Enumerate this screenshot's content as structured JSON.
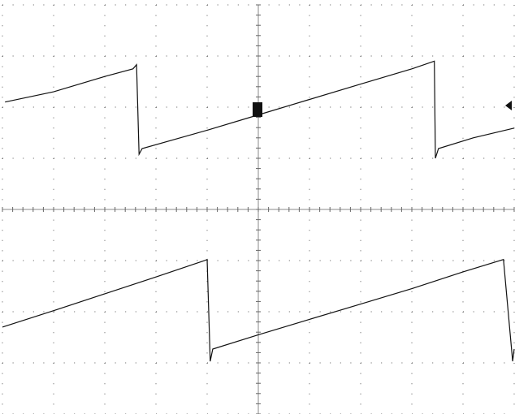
{
  "chart_data": {
    "type": "line",
    "xlim": [
      0,
      10
    ],
    "ylim": [
      -4,
      4
    ],
    "series": [
      {
        "color": "#111111",
        "x": [
          0.05,
          1.0,
          2.0,
          2.55,
          2.62,
          2.67,
          2.73,
          4.0,
          5.0,
          6.0,
          7.0,
          8.0,
          8.44,
          8.46,
          8.52,
          9.2,
          10.0
        ],
        "values": [
          2.1,
          2.3,
          2.6,
          2.75,
          2.83,
          1.08,
          1.19,
          1.55,
          1.85,
          2.15,
          2.45,
          2.75,
          2.9,
          1.0,
          1.19,
          1.4,
          1.59
        ]
      },
      {
        "color": "#111111",
        "x": [
          0.0,
          1.0,
          2.0,
          3.0,
          3.95,
          4.0,
          4.06,
          4.11,
          5.0,
          6.0,
          7.0,
          8.0,
          9.0,
          9.79,
          9.97,
          10.0
        ],
        "values": [
          -2.3,
          -1.98,
          -1.65,
          -1.32,
          -1.0,
          -0.98,
          -2.97,
          -2.73,
          -2.45,
          -2.15,
          -1.85,
          -1.55,
          -1.22,
          -0.98,
          -2.97,
          -2.73
        ]
      }
    ]
  }
}
